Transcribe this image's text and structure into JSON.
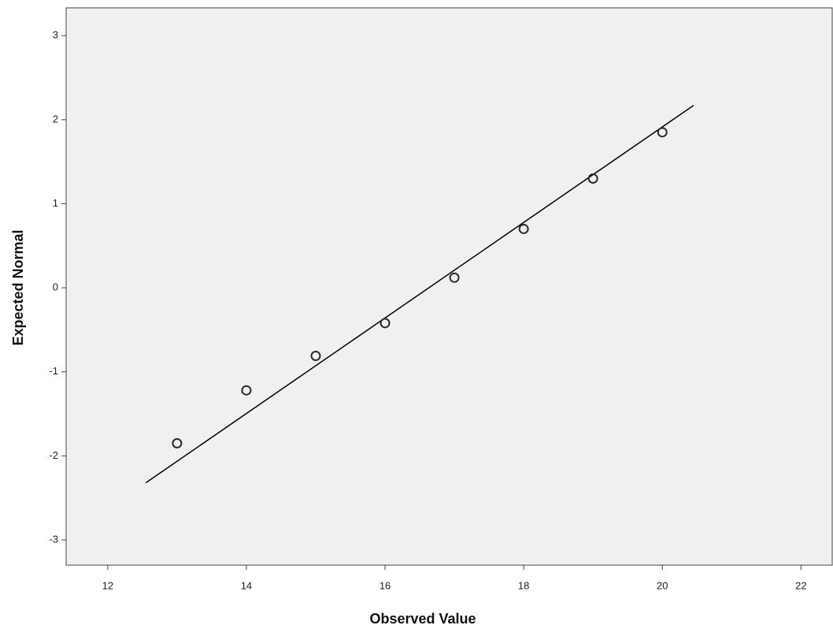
{
  "chart_data": {
    "type": "scatter",
    "xlabel": "Observed Value",
    "ylabel": "Expected Normal",
    "series": [
      {
        "color": "#2b2b2b",
        "x": [
          13,
          14,
          15,
          16,
          17,
          18,
          19,
          20
        ],
        "values": [
          -1.85,
          -1.22,
          -0.81,
          -0.42,
          0.12,
          0.7,
          1.3,
          1.85
        ]
      }
    ],
    "reference_line": {
      "color": "#000000",
      "x": [
        12.55,
        20.45
      ],
      "y": [
        -2.32,
        2.17
      ]
    },
    "xlim": [
      11.4,
      22.45
    ],
    "xticks": [
      12,
      14,
      16,
      18,
      20,
      22
    ],
    "ylim": [
      -3.3,
      3.33
    ],
    "yticks": [
      -3,
      -2,
      -1,
      0,
      1,
      2,
      3
    ],
    "background": "#f0f0f0"
  }
}
